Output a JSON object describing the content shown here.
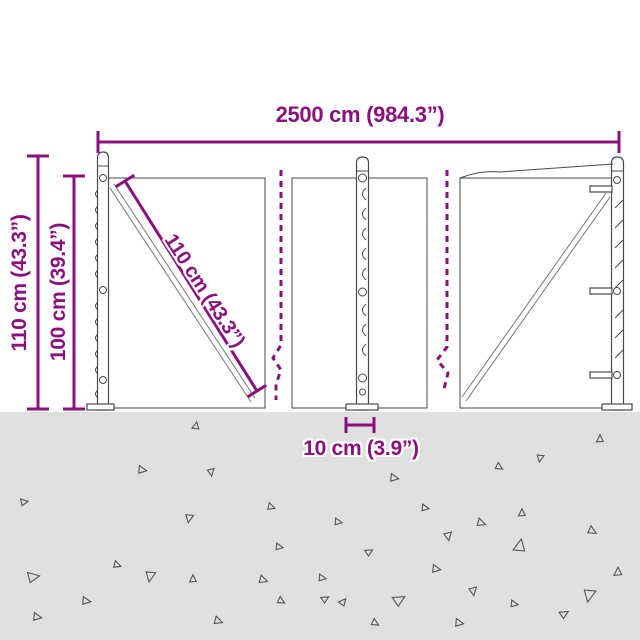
{
  "diagram": {
    "subject": "wire-mesh-fence-dimension-diagram",
    "labels": {
      "total_width": "2500 cm (984.3”)",
      "height_outer": "110 cm (43.3”)",
      "height_inner": "100 cm (39.4”)",
      "diagonal_brace": "110 cm (43.3”)",
      "post_width": "10 cm (3.9”)"
    },
    "colors": {
      "dimension_accent": "#8a117d",
      "fence_line": "#4a4a4a",
      "ground": "#e0e0df",
      "background": "#ffffff"
    }
  }
}
